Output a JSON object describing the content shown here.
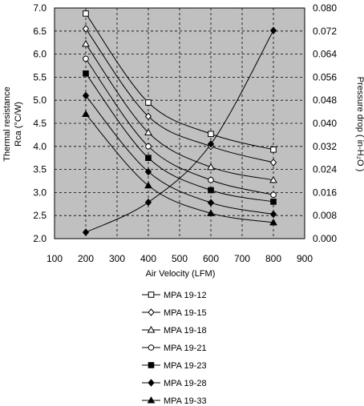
{
  "chart_data": {
    "type": "line",
    "xlabel": "Air Velocity (LFM)",
    "ylabel_left_line1": "Thermal resistance",
    "ylabel_left_line2": "Rca (°C/W)",
    "ylabel_right": "Pressure drop  ( in-H₂O )",
    "xlim": [
      100,
      900
    ],
    "ylim_left": [
      2.0,
      7.0
    ],
    "ylim_right": [
      0.0,
      0.08
    ],
    "x_ticks": [
      "100",
      "200",
      "300",
      "400",
      "500",
      "600",
      "700",
      "800",
      "900"
    ],
    "y_left_ticks": [
      "2.0",
      "2.5",
      "3.0",
      "3.5",
      "4.0",
      "4.5",
      "5.0",
      "5.5",
      "6.0",
      "6.5",
      "7.0"
    ],
    "y_right_ticks": [
      "0.000",
      "0.008",
      "0.016",
      "0.024",
      "0.032",
      "0.040",
      "0.048",
      "0.056",
      "0.064",
      "0.072",
      "0.080"
    ],
    "grid": true,
    "plot_background": "#c0c0c0",
    "legend_position": "below",
    "series": [
      {
        "name": "MPA 19-12",
        "marker": "square-open",
        "x": [
          200,
          400,
          600,
          800
        ],
        "values": [
          6.88,
          4.95,
          4.27,
          3.93
        ]
      },
      {
        "name": "MPA 19-15",
        "marker": "diamond-open",
        "x": [
          200,
          400,
          600,
          800
        ],
        "values": [
          6.55,
          4.65,
          4.0,
          3.65
        ]
      },
      {
        "name": "MPA 19-18",
        "marker": "triangle-open",
        "x": [
          200,
          400,
          600,
          800
        ],
        "values": [
          6.22,
          4.3,
          3.55,
          3.27
        ]
      },
      {
        "name": "MPA 19-21",
        "marker": "circle-open",
        "x": [
          200,
          400,
          600,
          800
        ],
        "values": [
          5.9,
          4.0,
          3.27,
          2.95
        ]
      },
      {
        "name": "MPA 19-23",
        "marker": "square-filled",
        "x": [
          200,
          400,
          600,
          800
        ],
        "values": [
          5.58,
          3.75,
          3.05,
          2.8
        ]
      },
      {
        "name": "MPA 19-28",
        "marker": "diamond-filled",
        "x": [
          200,
          400,
          600,
          800
        ],
        "values": [
          5.1,
          3.45,
          2.78,
          2.53
        ]
      },
      {
        "name": "MPA 19-33",
        "marker": "triangle-filled",
        "x": [
          200,
          400,
          600,
          800
        ],
        "values": [
          4.7,
          3.15,
          2.55,
          2.35
        ]
      }
    ],
    "pressure_series": {
      "axis": "right",
      "marker": "diamond-filled",
      "x": [
        200,
        400,
        600,
        800
      ],
      "values": [
        0.0022,
        0.0126,
        0.0328,
        0.0722
      ]
    }
  }
}
